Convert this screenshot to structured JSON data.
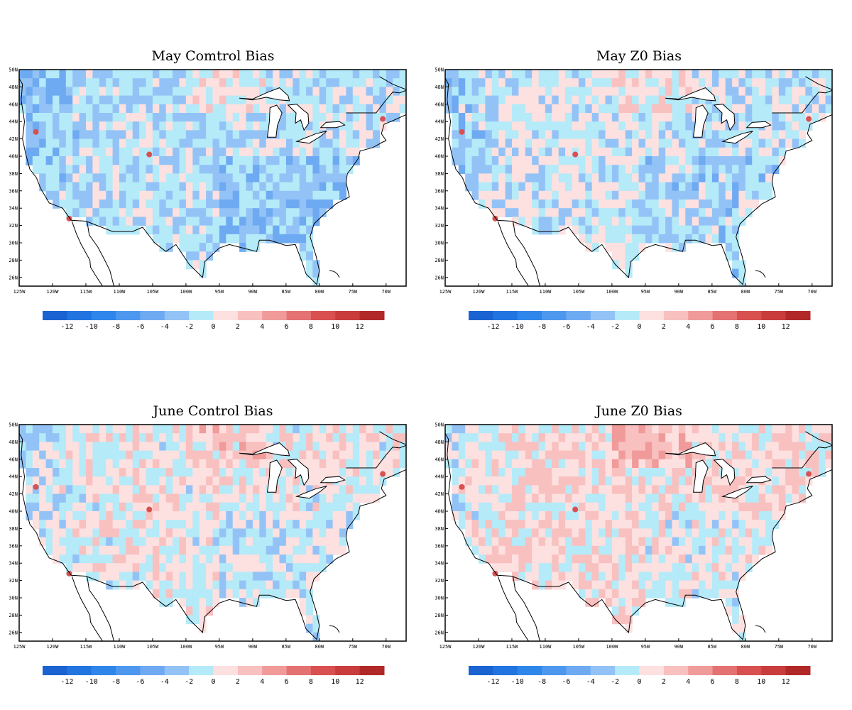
{
  "panels": [
    {
      "title": "May Comtrol Bias",
      "seed": 11,
      "bias": -1.4
    },
    {
      "title": "May Z0 Bias",
      "seed": 23,
      "bias": -0.6
    },
    {
      "title": "June Control Bias",
      "seed": 37,
      "bias": 0.4
    },
    {
      "title": "June Z0 Bias",
      "seed": 53,
      "bias": 1.4
    }
  ],
  "lat_labels": [
    "50N",
    "48N",
    "46N",
    "44N",
    "42N",
    "40N",
    "38N",
    "36N",
    "34N",
    "32N",
    "30N",
    "28N",
    "26N"
  ],
  "lon_labels": [
    "125W",
    "120W",
    "115W",
    "110W",
    "105W",
    "100W",
    "95W",
    "90W",
    "85W",
    "80W",
    "75W",
    "70W"
  ],
  "colorbar": {
    "tick_labels": [
      "-12",
      "-10",
      "-8",
      "-6",
      "-4",
      "-2",
      "0",
      "2",
      "4",
      "6",
      "8",
      "10",
      "12"
    ],
    "colors": [
      "#1a63d0",
      "#2275e0",
      "#2f86ea",
      "#4d98ee",
      "#6eaaf2",
      "#93c3f6",
      "#b5eaf8",
      "#fde0e0",
      "#f9c0c0",
      "#f09a9a",
      "#e57272",
      "#d85050",
      "#c83c3c",
      "#b02828"
    ]
  }
}
